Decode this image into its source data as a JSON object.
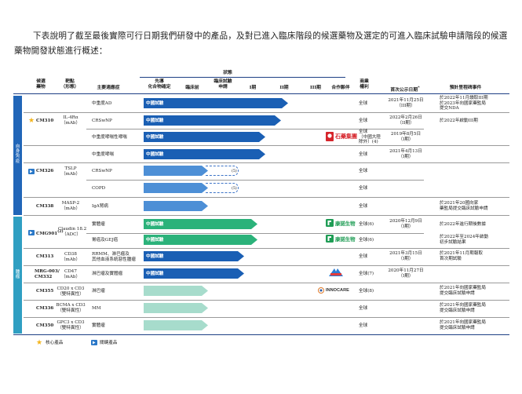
{
  "intro": "下表說明了截至最後實際可行日期我們研發中的產品，及對已進入臨床階段的候選藥物及選定的可進入臨床試驗申請階段的候選藥物開發狀態進行概述：",
  "colors": {
    "navy": "#1d3f84",
    "clinical_blue": "#1a5fb4",
    "preclinical_blue": "#4d8fd6",
    "green": "#2bb27a",
    "mint": "#a7dccc",
    "sidebar_blue": "#2166b8",
    "sidebar_teal": "#2f9fc2"
  },
  "header": {
    "status": "狀態",
    "drug": "候選\n藥物",
    "target": "靶點\n（形態）",
    "indication": "主要適應症",
    "lead": "先導\n化合物確定",
    "preclinical": "臨床前",
    "ind": "臨床試驗\n申請",
    "p1": "I期",
    "p2": "II期",
    "p3": "III期",
    "partner": "合作夥伴",
    "rights": "商業\n權利",
    "first_data": "首次公示日期",
    "first_data_mark": "*",
    "next_event": "預計里程碑事件"
  },
  "sections": {
    "autoimmune": "自身免疫",
    "oncology": "腫瘤"
  },
  "drugs": {
    "cm310": "CM310",
    "cm310_target": "IL-4Rα\n（mAb）",
    "cm326": "CM326",
    "cm326_target": "TSLP\n（mAb）",
    "cm338": "CM338",
    "cm338_target": "MASP-2\n（mAb）",
    "cmg901": "CMG901",
    "cmg901_mark": "(2)",
    "cmg901_target": "Claudin 18.2\n（ADC）",
    "cm313": "CM313",
    "cm313_target": "CD38\n（mAb）",
    "cm332": "MRG-003/\nCM332",
    "cm332_target": "CD47\n（mAb）",
    "cm355": "CM355",
    "cm355_target": "CD20 x CD3\n（雙特異性）",
    "cm336": "CM336",
    "cm336_target": "BCMA x CD3\n（雙特異性）",
    "cm350": "CM350",
    "cm350_target": "GPC3 x CD3\n（雙特異性）"
  },
  "rows": [
    {
      "indication": "中重度AD",
      "bar_label": "中國試驗",
      "rights": "全球",
      "first_data": "2021年11月25日\n（III期）",
      "next": "於2022年11月讀取III期\n於2023年向國家藥監局\n提交NDA"
    },
    {
      "indication": "CRSwNP",
      "bar_label": "中國試驗",
      "rights": "全球",
      "first_data": "2022年2月26日\n（II期）",
      "next": "於2022年啟動III期"
    },
    {
      "indication": "中重度哮喘性哮喘",
      "bar_label": "中國試驗",
      "partner": "石藥集團",
      "rights": "全球\n（中國大陸\n除外）(4)",
      "first_data": "2019年8月5日\n（I期）",
      "next": ""
    },
    {
      "indication": "中重度哮喘",
      "bar_label": "中國試驗",
      "rights": "全球",
      "first_data": "2021年4月13日\n（I期）",
      "next": ""
    },
    {
      "indication": "CRSwNP",
      "bar_label": "",
      "tag": "(5)",
      "rights": "全球",
      "first_data": "",
      "next": ""
    },
    {
      "indication": "COPD",
      "bar_label": "",
      "tag": "(5)",
      "rights": "全球",
      "first_data": "",
      "next": ""
    },
    {
      "indication": "IgA腎病",
      "bar_label": "",
      "rights": "全球",
      "first_data": "",
      "next": "於2021年20國向家\n藥監局提交臨床試驗申請"
    },
    {
      "indication": "實體瘤",
      "bar_label": "中國試驗",
      "partner": "康諾生物",
      "rights": "全球(6)",
      "first_data": "2020年12月9日\n（I期）",
      "next": "於2022年進行期後數據"
    },
    {
      "indication": "胃癌及GEJ癌",
      "bar_label": "中國試驗",
      "partner": "康諾生物",
      "rights": "全球(6)",
      "first_data": "",
      "next": "於2022年至2024年啟動\n初步試驗結果"
    },
    {
      "indication": "RRMM、淋巴瘤及\n其他血液系統惡性腫瘤",
      "bar_label": "中國試驗",
      "rights": "全球",
      "first_data": "2021年3月15日\n（I期）",
      "next": "於2021年11月期報取\n首次期試驗"
    },
    {
      "indication": "淋巴瘤及實體瘤",
      "bar_label": "中國試驗",
      "partner": "美雅",
      "rights": "全球(7)",
      "first_data": "2020年11月27日\n（I期）",
      "next": ""
    },
    {
      "indication": "淋巴瘤",
      "bar_label": "",
      "partner": "INNOCARE",
      "rights": "全球(8)",
      "first_data": "",
      "next": "於2021年向國家藥監局\n提交臨床試驗申請"
    },
    {
      "indication": "MM",
      "bar_label": "",
      "rights": "全球",
      "first_data": "",
      "next": "於2021年向國家藥監局\n提交臨床試驗申請"
    },
    {
      "indication": "實體瘤",
      "bar_label": "",
      "rights": "全球",
      "first_data": "",
      "next": "於2021年向國家藥監局\n提交臨床試驗申請"
    }
  ],
  "legend": {
    "core": "核心產品",
    "key": "關鍵產品"
  }
}
